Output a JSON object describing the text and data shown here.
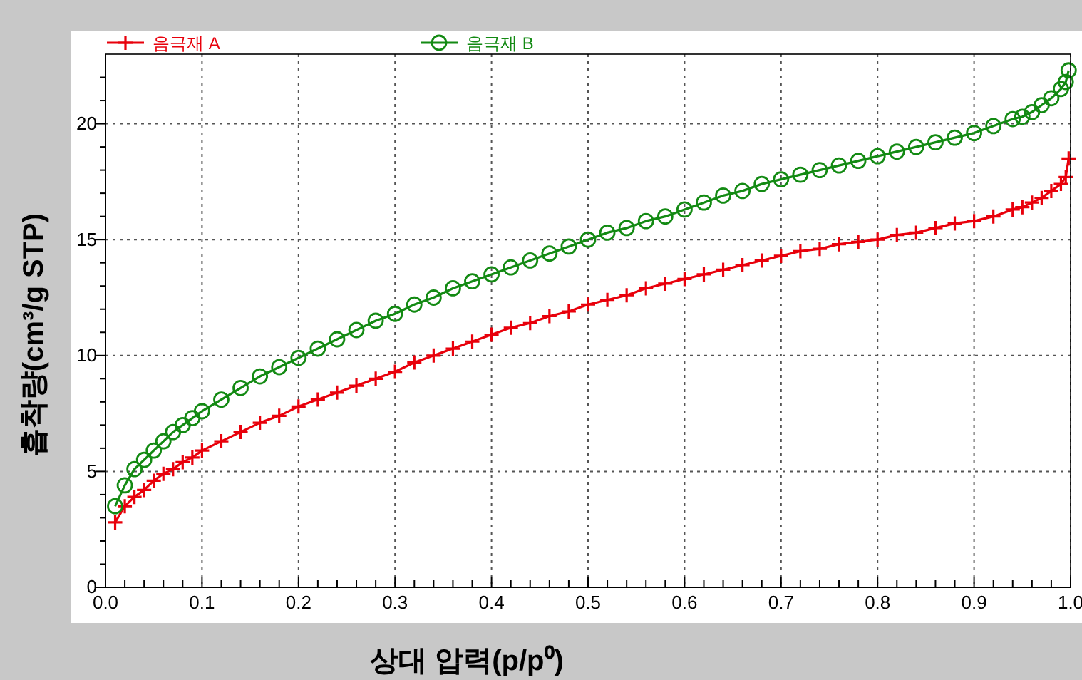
{
  "chart_data": {
    "type": "line",
    "xlabel": "상대 압력(p/p⁰)",
    "ylabel": "흡착량(cm³/g STP)",
    "xlim": [
      0,
      1
    ],
    "ylim": [
      0,
      23
    ],
    "xticks": [
      {
        "value": 0,
        "label": "0.0"
      },
      {
        "value": 0.02,
        "label": null
      },
      {
        "value": 0.04,
        "label": null
      },
      {
        "value": 0.06,
        "label": null
      },
      {
        "value": 0.08,
        "label": null
      },
      {
        "value": 0.1,
        "label": "0.1"
      },
      {
        "value": 0.12,
        "label": null
      },
      {
        "value": 0.14,
        "label": null
      },
      {
        "value": 0.16,
        "label": null
      },
      {
        "value": 0.18,
        "label": null
      },
      {
        "value": 0.2,
        "label": "0.2"
      },
      {
        "value": 0.22,
        "label": null
      },
      {
        "value": 0.24,
        "label": null
      },
      {
        "value": 0.26,
        "label": null
      },
      {
        "value": 0.28,
        "label": null
      },
      {
        "value": 0.3,
        "label": "0.3"
      },
      {
        "value": 0.32,
        "label": null
      },
      {
        "value": 0.34,
        "label": null
      },
      {
        "value": 0.36,
        "label": null
      },
      {
        "value": 0.38,
        "label": null
      },
      {
        "value": 0.4,
        "label": "0.4"
      },
      {
        "value": 0.42,
        "label": null
      },
      {
        "value": 0.44,
        "label": null
      },
      {
        "value": 0.46,
        "label": null
      },
      {
        "value": 0.48,
        "label": null
      },
      {
        "value": 0.5,
        "label": "0.5"
      },
      {
        "value": 0.52,
        "label": null
      },
      {
        "value": 0.54,
        "label": null
      },
      {
        "value": 0.56,
        "label": null
      },
      {
        "value": 0.58,
        "label": null
      },
      {
        "value": 0.6,
        "label": "0.6"
      },
      {
        "value": 0.62,
        "label": null
      },
      {
        "value": 0.64,
        "label": null
      },
      {
        "value": 0.66,
        "label": null
      },
      {
        "value": 0.68,
        "label": null
      },
      {
        "value": 0.7,
        "label": "0.7"
      },
      {
        "value": 0.72,
        "label": null
      },
      {
        "value": 0.74,
        "label": null
      },
      {
        "value": 0.76,
        "label": null
      },
      {
        "value": 0.78,
        "label": null
      },
      {
        "value": 0.8,
        "label": "0.8"
      },
      {
        "value": 0.82,
        "label": null
      },
      {
        "value": 0.84,
        "label": null
      },
      {
        "value": 0.86,
        "label": null
      },
      {
        "value": 0.88,
        "label": null
      },
      {
        "value": 0.9,
        "label": "0.9"
      },
      {
        "value": 0.92,
        "label": null
      },
      {
        "value": 0.94,
        "label": null
      },
      {
        "value": 0.96,
        "label": null
      },
      {
        "value": 0.98,
        "label": null
      },
      {
        "value": 1,
        "label": "1.0"
      }
    ],
    "yticks": [
      0,
      {
        "value": 1,
        "label": null
      },
      {
        "value": 2,
        "label": null
      },
      {
        "value": 3,
        "label": null
      },
      {
        "value": 4,
        "label": null
      },
      5,
      {
        "value": 6,
        "label": null
      },
      {
        "value": 7,
        "label": null
      },
      {
        "value": 8,
        "label": null
      },
      {
        "value": 9,
        "label": null
      },
      10,
      {
        "value": 11,
        "label": null
      },
      {
        "value": 12,
        "label": null
      },
      {
        "value": 13,
        "label": null
      },
      {
        "value": 14,
        "label": null
      },
      15,
      {
        "value": 16,
        "label": null
      },
      {
        "value": 17,
        "label": null
      },
      {
        "value": 18,
        "label": null
      },
      {
        "value": 19,
        "label": null
      },
      20,
      {
        "value": 21,
        "label": null
      },
      {
        "value": 22,
        "label": null
      }
    ],
    "grid": true,
    "legend": "top left",
    "line_style": "solid",
    "x": [
      0.01,
      0.02,
      0.03,
      0.04,
      0.05,
      0.06,
      0.07,
      0.08,
      0.09,
      0.1,
      0.12,
      0.14,
      0.16,
      0.18,
      0.2,
      0.22,
      0.24,
      0.26,
      0.28,
      0.3,
      0.32,
      0.34,
      0.36,
      0.38,
      0.4,
      0.42,
      0.44,
      0.46,
      0.48,
      0.5,
      0.52,
      0.54,
      0.56,
      0.58,
      0.6,
      0.62,
      0.64,
      0.66,
      0.68,
      0.7,
      0.72,
      0.74,
      0.76,
      0.78,
      0.8,
      0.82,
      0.84,
      0.86,
      0.88,
      0.9,
      0.92,
      0.94,
      0.95,
      0.96,
      0.97,
      0.98,
      0.99,
      0.995,
      0.998
    ],
    "series": [
      {
        "name": "음극재 A",
        "color": "#e8000b",
        "marker": "cross",
        "values": [
          2.8,
          3.5,
          3.9,
          4.2,
          4.6,
          4.9,
          5.1,
          5.4,
          5.6,
          5.9,
          6.3,
          6.7,
          7.1,
          7.4,
          7.8,
          8.1,
          8.4,
          8.7,
          9.0,
          9.3,
          9.7,
          10.0,
          10.3,
          10.6,
          10.9,
          11.2,
          11.4,
          11.7,
          11.9,
          12.2,
          12.4,
          12.6,
          12.9,
          13.1,
          13.3,
          13.5,
          13.7,
          13.9,
          14.1,
          14.3,
          14.5,
          14.6,
          14.8,
          14.9,
          15.0,
          15.2,
          15.3,
          15.5,
          15.7,
          15.8,
          16.0,
          16.3,
          16.4,
          16.6,
          16.8,
          17.1,
          17.4,
          17.7,
          18.5
        ]
      },
      {
        "name": "음극재 B",
        "color": "#138a13",
        "marker": "circle",
        "values": [
          3.5,
          4.4,
          5.1,
          5.5,
          5.9,
          6.3,
          6.7,
          7.0,
          7.3,
          7.6,
          8.1,
          8.6,
          9.1,
          9.5,
          9.9,
          10.3,
          10.7,
          11.1,
          11.5,
          11.8,
          12.2,
          12.5,
          12.9,
          13.2,
          13.5,
          13.8,
          14.1,
          14.4,
          14.7,
          15.0,
          15.3,
          15.5,
          15.8,
          16.0,
          16.3,
          16.6,
          16.9,
          17.1,
          17.4,
          17.6,
          17.8,
          18.0,
          18.2,
          18.4,
          18.6,
          18.8,
          19.0,
          19.2,
          19.4,
          19.6,
          19.9,
          20.2,
          20.3,
          20.5,
          20.8,
          21.1,
          21.5,
          21.8,
          22.3
        ]
      }
    ]
  }
}
